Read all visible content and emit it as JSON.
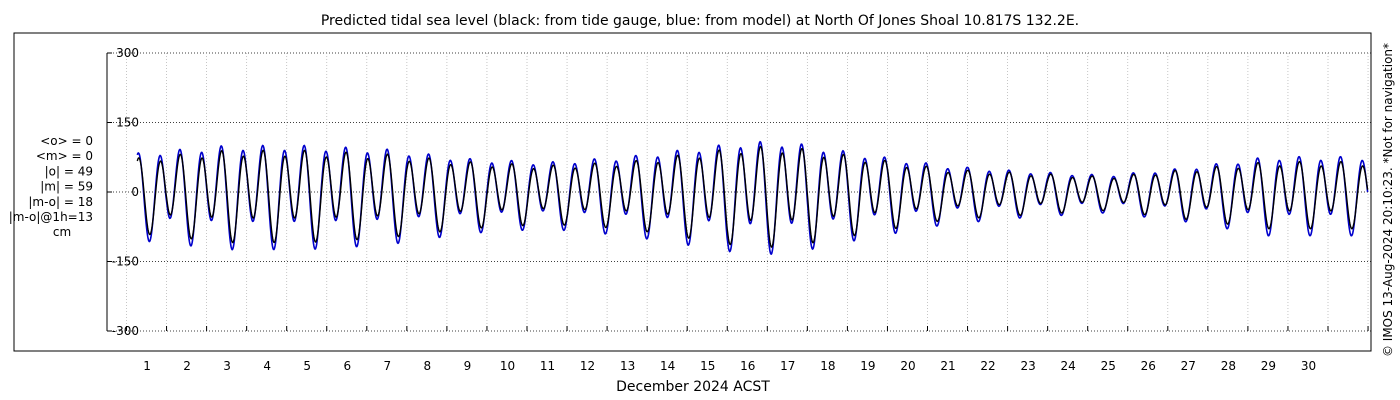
{
  "chart_data": {
    "type": "line",
    "title": "Predicted tidal sea level (black: from tide gauge, blue: from model) at North Of Jones Shoal 10.817S 132.2E.",
    "xlabel": "December 2024 ACST",
    "ylabel": "",
    "x_ticks": [
      "1",
      "2",
      "3",
      "4",
      "5",
      "6",
      "7",
      "8",
      "9",
      "10",
      "11",
      "12",
      "13",
      "14",
      "15",
      "16",
      "17",
      "18",
      "19",
      "20",
      "21",
      "22",
      "23",
      "24",
      "25",
      "26",
      "27",
      "28",
      "29",
      "30"
    ],
    "y_ticks": [
      300,
      150,
      0,
      -150,
      -300
    ],
    "xlim_days": [
      0.05,
      31.0
    ],
    "ylim": [
      -330,
      330
    ],
    "grid": true,
    "stats": [
      "<o> = 0",
      "<m> = 0",
      "|o| = 49",
      "|m| = 59",
      "|m-o| = 18",
      "|m-o|@1h=13",
      "cm"
    ],
    "side_note": "© IMOS 13-Aug-2024 20:10:23. *Not for navigation*",
    "series": [
      {
        "name": "tide gauge",
        "color": "#000000",
        "amplitude_envelope": {
          "day": [
            0.3,
            2.5,
            4.5,
            6.5,
            8.5,
            10.5,
            12.5,
            15.5,
            16.5,
            18.5,
            20.5,
            22.5,
            24.5,
            26.5,
            28.5,
            30.5
          ],
          "range": [
            90,
            110,
            110,
            100,
            80,
            70,
            80,
            120,
            120,
            90,
            60,
            50,
            40,
            60,
            80,
            80
          ]
        }
      },
      {
        "name": "model",
        "color": "#0000cc",
        "amplitude_envelope": {
          "day": [
            0.3,
            2.5,
            4.5,
            6.5,
            8.5,
            10.5,
            12.5,
            15.5,
            16.5,
            18.5,
            20.5,
            22.5,
            24.5,
            26.5,
            28.5,
            30.5
          ],
          "range": [
            105,
            125,
            125,
            115,
            90,
            80,
            95,
            135,
            135,
            100,
            70,
            55,
            45,
            65,
            95,
            95
          ]
        }
      }
    ]
  }
}
